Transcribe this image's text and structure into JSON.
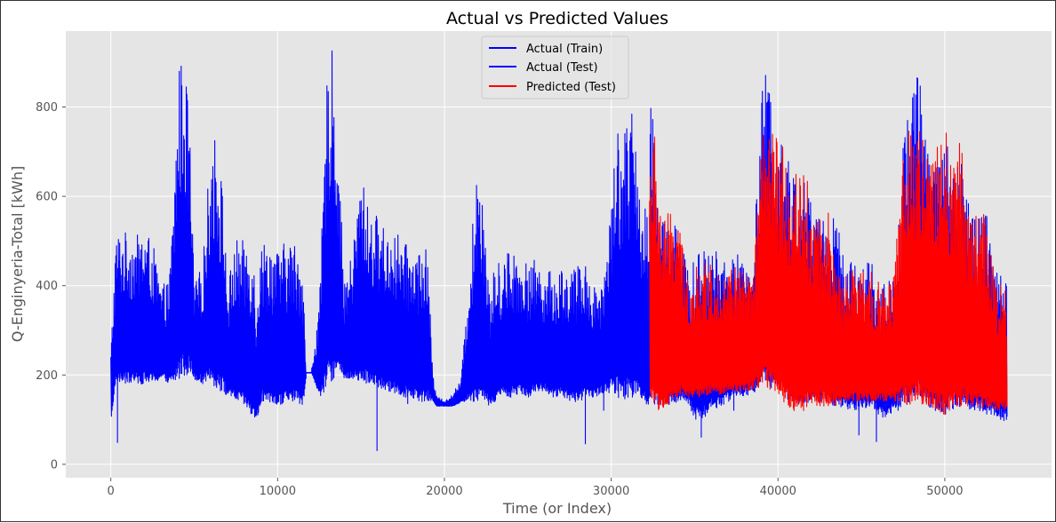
{
  "chart_data": {
    "type": "line",
    "title": "Actual vs Predicted Values",
    "xlabel": "Time (or Index)",
    "ylabel": "Q-Enginyeria-Total [kWh]",
    "xlim": [
      -2700,
      56400
    ],
    "ylim": [
      -30,
      970
    ],
    "xticks": [
      0,
      10000,
      20000,
      30000,
      40000,
      50000
    ],
    "yticks": [
      0,
      200,
      400,
      600,
      800
    ],
    "grid": true,
    "background": "#e5e5e5",
    "legend_position": "upper center",
    "series": [
      {
        "name": "Actual (Train)",
        "color": "#0000ff",
        "x_range": [
          0,
          32300
        ],
        "envelope": {
          "x": [
            0,
            300,
            500,
            1000,
            1500,
            2000,
            2500,
            3000,
            3500,
            3800,
            4100,
            4400,
            4700,
            5000,
            5500,
            6000,
            6300,
            6700,
            7000,
            7500,
            8000,
            8500,
            8700,
            9000,
            9500,
            10000,
            10500,
            11000,
            11500,
            11700,
            12000,
            12500,
            12800,
            13000,
            13300,
            13600,
            14000,
            14500,
            15000,
            15500,
            16000,
            16500,
            17000,
            17500,
            18000,
            18500,
            19000,
            19300,
            19500,
            20000,
            20500,
            21000,
            21500,
            22000,
            22300,
            22700,
            23000,
            23500,
            24000,
            24500,
            25000,
            25500,
            26000,
            26500,
            27000,
            27500,
            28000,
            28500,
            29000,
            29500,
            30000,
            30300,
            30600,
            31000,
            31300,
            31600,
            32000,
            32300
          ],
          "high": [
            260,
            510,
            525,
            520,
            510,
            530,
            500,
            400,
            410,
            630,
            900,
            910,
            790,
            400,
            450,
            720,
            750,
            620,
            400,
            505,
            500,
            505,
            380,
            500,
            505,
            480,
            500,
            500,
            470,
            205,
            205,
            350,
            700,
            900,
            930,
            740,
            400,
            480,
            660,
            560,
            560,
            520,
            530,
            500,
            480,
            490,
            480,
            200,
            160,
            140,
            160,
            190,
            440,
            690,
            650,
            380,
            440,
            470,
            490,
            470,
            450,
            460,
            440,
            430,
            445,
            440,
            445,
            460,
            400,
            420,
            590,
            770,
            750,
            780,
            800,
            620,
            600,
            640
          ],
          "low": [
            105,
            190,
            180,
            180,
            180,
            180,
            180,
            190,
            180,
            180,
            190,
            200,
            200,
            190,
            180,
            180,
            170,
            160,
            150,
            140,
            130,
            100,
            95,
            140,
            130,
            130,
            140,
            140,
            130,
            205,
            205,
            150,
            160,
            180,
            190,
            200,
            190,
            190,
            180,
            180,
            170,
            160,
            160,
            150,
            150,
            140,
            140,
            140,
            130,
            130,
            130,
            140,
            140,
            140,
            140,
            130,
            140,
            150,
            150,
            160,
            150,
            160,
            160,
            150,
            150,
            140,
            140,
            150,
            150,
            160,
            160,
            150,
            140,
            150,
            150,
            160,
            130,
            120
          ]
        },
        "outliers": [
          [
            400,
            48
          ],
          [
            15960,
            30
          ],
          [
            17800,
            135
          ],
          [
            28450,
            45
          ],
          [
            29550,
            120
          ]
        ]
      },
      {
        "name": "Actual (Test)",
        "color": "#0000ff",
        "x_range": [
          32300,
          53700
        ],
        "envelope": {
          "x": [
            32300,
            32600,
            33000,
            33500,
            34000,
            34500,
            35000,
            35500,
            36000,
            36500,
            37000,
            37500,
            38000,
            38500,
            38800,
            39100,
            39400,
            39700,
            40000,
            40500,
            41000,
            41500,
            42000,
            42500,
            43000,
            43500,
            44000,
            44500,
            45000,
            45500,
            46000,
            46500,
            47000,
            47500,
            47800,
            48100,
            48400,
            48700,
            49000,
            49500,
            50000,
            50500,
            51000,
            51500,
            52000,
            52500,
            53000,
            53300,
            53700
          ],
          "high": [
            840,
            740,
            580,
            550,
            570,
            440,
            460,
            480,
            490,
            470,
            450,
            480,
            440,
            500,
            640,
            890,
            860,
            830,
            800,
            710,
            640,
            660,
            600,
            580,
            570,
            560,
            450,
            460,
            460,
            470,
            410,
            400,
            460,
            720,
            820,
            870,
            880,
            830,
            700,
            740,
            740,
            720,
            700,
            560,
            560,
            560,
            440,
            440,
            440
          ],
          "low": [
            150,
            130,
            130,
            130,
            140,
            140,
            100,
            100,
            120,
            130,
            140,
            150,
            150,
            160,
            170,
            180,
            170,
            160,
            150,
            140,
            140,
            130,
            130,
            140,
            130,
            130,
            120,
            120,
            120,
            130,
            110,
            100,
            120,
            130,
            130,
            140,
            140,
            130,
            130,
            110,
            110,
            120,
            130,
            120,
            120,
            110,
            110,
            100,
            95
          ]
        },
        "outliers": [
          [
            35400,
            60
          ],
          [
            37350,
            120
          ],
          [
            44850,
            65
          ],
          [
            45900,
            50
          ],
          [
            47200,
            120
          ]
        ]
      },
      {
        "name": "Predicted (Test)",
        "color": "#ff0000",
        "x_range": [
          32300,
          53700
        ],
        "envelope": {
          "x": [
            32300,
            32600,
            33000,
            33500,
            34000,
            34500,
            35000,
            35500,
            36000,
            36500,
            37000,
            37500,
            38000,
            38500,
            38800,
            39100,
            39400,
            39700,
            40000,
            40500,
            41000,
            41500,
            42000,
            42500,
            43000,
            43500,
            44000,
            44500,
            45000,
            45500,
            46000,
            46500,
            47000,
            47500,
            47800,
            48100,
            48400,
            48700,
            49000,
            49500,
            50000,
            50500,
            51000,
            51500,
            52000,
            52500,
            53000,
            53300,
            53700
          ],
          "high": [
            730,
            745,
            570,
            560,
            570,
            420,
            440,
            450,
            450,
            440,
            440,
            450,
            430,
            420,
            600,
            740,
            760,
            740,
            730,
            700,
            650,
            700,
            580,
            570,
            570,
            430,
            420,
            440,
            440,
            450,
            410,
            400,
            440,
            720,
            750,
            760,
            750,
            740,
            690,
            720,
            750,
            740,
            720,
            560,
            570,
            560,
            420,
            420,
            420
          ],
          "low": [
            140,
            120,
            120,
            130,
            150,
            150,
            150,
            150,
            160,
            150,
            160,
            160,
            160,
            170,
            170,
            180,
            170,
            160,
            150,
            130,
            110,
            120,
            130,
            130,
            130,
            130,
            140,
            140,
            140,
            140,
            140,
            140,
            140,
            140,
            130,
            140,
            140,
            130,
            130,
            120,
            110,
            120,
            130,
            130,
            130,
            120,
            120,
            120,
            120
          ]
        }
      }
    ]
  }
}
